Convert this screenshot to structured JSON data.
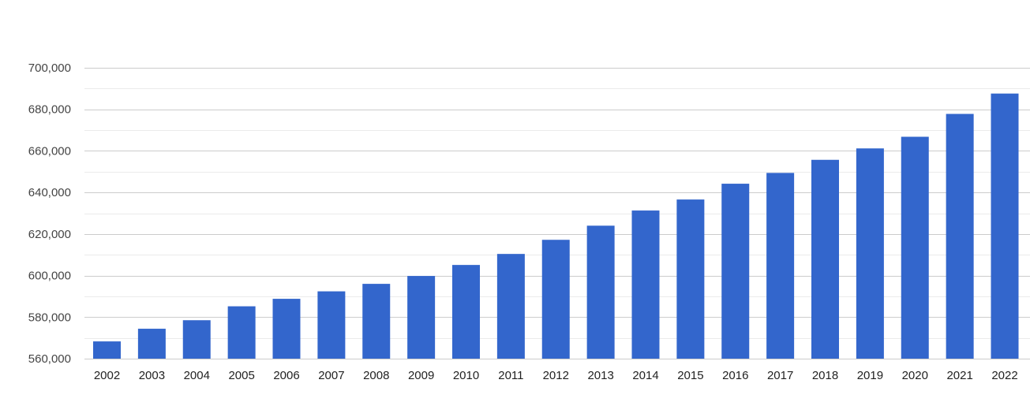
{
  "chart_data": {
    "type": "bar",
    "title": "",
    "xlabel": "",
    "ylabel": "",
    "categories": [
      "2002",
      "2003",
      "2004",
      "2005",
      "2006",
      "2007",
      "2008",
      "2009",
      "2010",
      "2011",
      "2012",
      "2013",
      "2014",
      "2015",
      "2016",
      "2017",
      "2018",
      "2019",
      "2020",
      "2021",
      "2022"
    ],
    "values": [
      568300,
      574400,
      578500,
      585200,
      588800,
      592400,
      596000,
      599800,
      605100,
      610400,
      617200,
      624000,
      631300,
      636600,
      644200,
      649400,
      655700,
      661200,
      666800,
      677800,
      687600
    ],
    "ylim": [
      560000,
      700000
    ],
    "yticks": [
      560000,
      580000,
      600000,
      620000,
      640000,
      660000,
      680000,
      700000
    ],
    "ytick_labels": [
      "560,000",
      "580,000",
      "600,000",
      "620,000",
      "640,000",
      "660,000",
      "680,000",
      "700,000"
    ],
    "grid": true,
    "legend": "none",
    "bar_color": "#3366cc",
    "grid_color": "#cccccc",
    "minor_grid_color": "#ebebeb"
  }
}
